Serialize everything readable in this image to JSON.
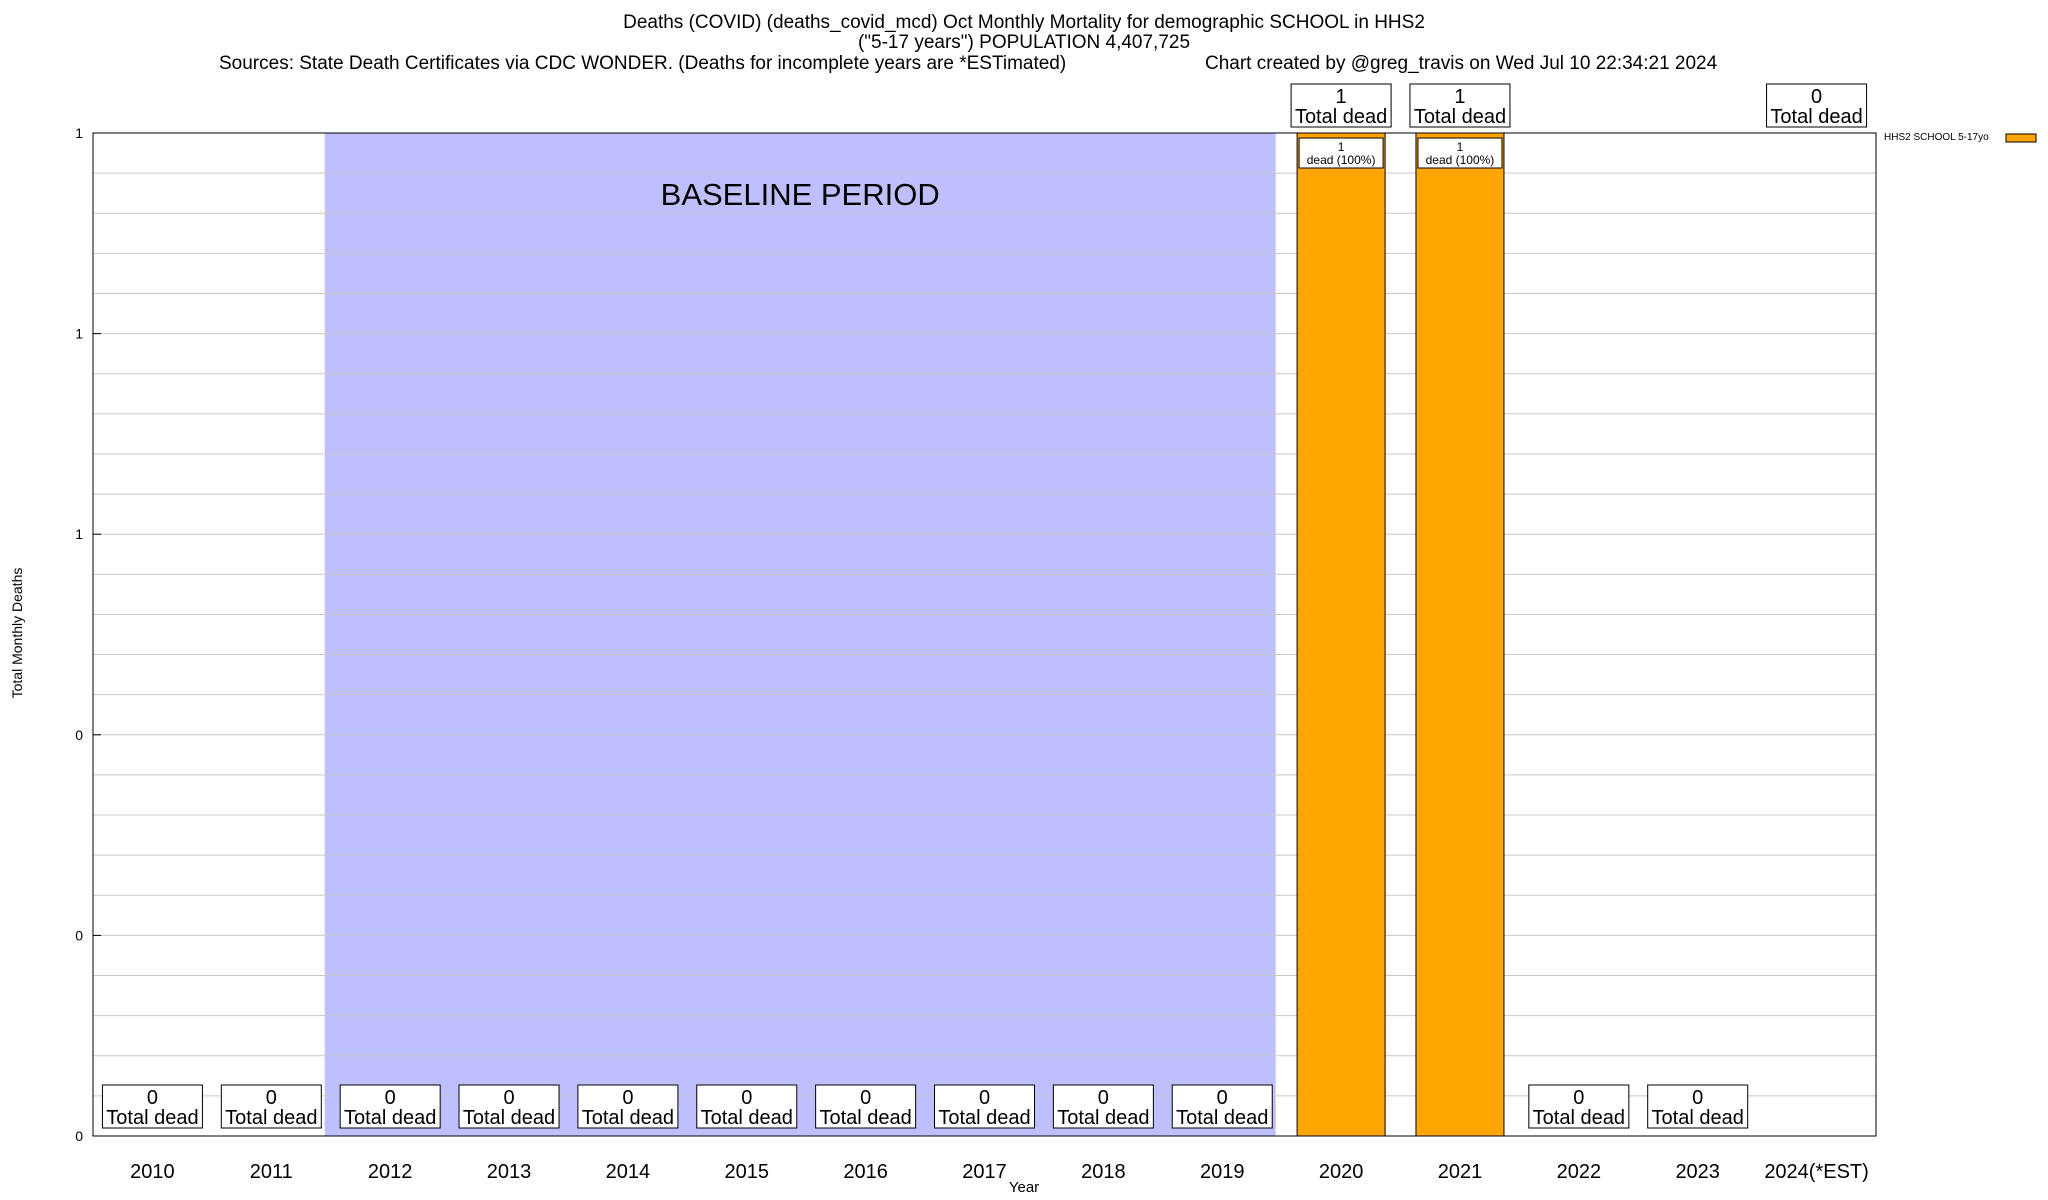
{
  "header": {
    "title_line1": "Deaths (COVID) (deaths_covid_mcd) Oct Monthly Mortality for demographic SCHOOL in HHS2",
    "title_line2": "(\"5-17 years\") POPULATION 4,407,725",
    "sources": "Sources: State Death Certificates via CDC WONDER. (Deaths for incomplete years are *ESTimated)",
    "credit": "Chart created by @greg_travis on Wed Jul 10 22:34:21 2024"
  },
  "chart_data": {
    "type": "bar",
    "title": "Deaths (COVID) (deaths_covid_mcd) Oct Monthly Mortality for demographic SCHOOL in HHS2",
    "xlabel": "Year",
    "ylabel": "Total Monthly Deaths",
    "categories": [
      "2010",
      "2011",
      "2012",
      "2013",
      "2014",
      "2015",
      "2016",
      "2017",
      "2018",
      "2019",
      "2020",
      "2021",
      "2022",
      "2023",
      "2024(*EST)"
    ],
    "series": [
      {
        "name": "HHS2 SCHOOL 5-17yo",
        "color": "#ffa500",
        "values": [
          0,
          0,
          0,
          0,
          0,
          0,
          0,
          0,
          0,
          0,
          1,
          1,
          0,
          0,
          0
        ]
      }
    ],
    "total_labels": [
      {
        "value": "0",
        "text": "Total dead"
      },
      {
        "value": "0",
        "text": "Total dead"
      },
      {
        "value": "0",
        "text": "Total dead"
      },
      {
        "value": "0",
        "text": "Total dead"
      },
      {
        "value": "0",
        "text": "Total dead"
      },
      {
        "value": "0",
        "text": "Total dead"
      },
      {
        "value": "0",
        "text": "Total dead"
      },
      {
        "value": "0",
        "text": "Total dead"
      },
      {
        "value": "0",
        "text": "Total dead"
      },
      {
        "value": "0",
        "text": "Total dead"
      },
      {
        "value": "1",
        "text": "Total dead"
      },
      {
        "value": "1",
        "text": "Total dead"
      },
      {
        "value": "0",
        "text": "Total dead"
      },
      {
        "value": "0",
        "text": "Total dead"
      },
      {
        "value": "0",
        "text": "Total dead"
      }
    ],
    "bar_labels": [
      {
        "category": "2020",
        "line1": "1",
        "line2": "dead (100%)"
      },
      {
        "category": "2021",
        "line1": "1",
        "line2": "dead (100%)"
      }
    ],
    "ylim": [
      0,
      1
    ],
    "y_tick_values": [
      0,
      0.2,
      0.4,
      0.6,
      0.8,
      1.0
    ],
    "y_tick_labels": [
      "0",
      "0",
      "0",
      "1",
      "1",
      "1"
    ],
    "grid": true,
    "baseline_period": {
      "label": "BASELINE PERIOD",
      "start": "2012",
      "end": "2019",
      "color": "#bfbffe"
    },
    "legend": {
      "position": "top-right",
      "entries": [
        "HHS2 SCHOOL 5-17yo"
      ]
    },
    "colors": {
      "bar": "#ffa500",
      "baseline": "#bfbffe",
      "grid": "#c8c8c8"
    }
  }
}
